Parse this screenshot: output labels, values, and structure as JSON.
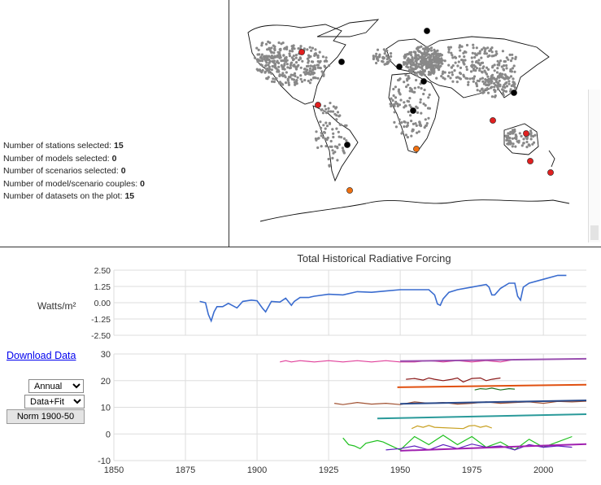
{
  "stats": {
    "stations_label": "Number of stations selected:",
    "stations_value": "15",
    "models_label": "Number of models selected:",
    "models_value": "0",
    "scenarios_label": "Number of scenarios selected:",
    "scenarios_value": "0",
    "couples_label": "Number of model/scenario couples:",
    "couples_value": "0",
    "datasets_label": "Number of datasets on the plot:",
    "datasets_value": "15"
  },
  "controls": {
    "download_label": "Download Data",
    "frequency_selected": "Annual",
    "mode_selected": "Data+Fit",
    "norm_label": "Norm 1900-50"
  },
  "colors": {
    "forcing_line": "#3a6ccf",
    "station_dot": "#888888",
    "selected_red": "#e02020",
    "selected_black": "#000000",
    "selected_orange": "#f07010"
  },
  "chart_data": [
    {
      "type": "line",
      "title": "Total Historical Radiative Forcing",
      "ylabel": "Watts/m²",
      "yticks": [
        "2.50",
        "1.25",
        "0.00",
        "-1.25",
        "-2.50"
      ],
      "ylim": [
        -2.5,
        2.5
      ],
      "xlim": [
        1850,
        2015
      ],
      "grid": true,
      "series": [
        {
          "x": [
            1880,
            1882,
            1883,
            1884,
            1885,
            1886,
            1888,
            1890,
            1893,
            1895,
            1898,
            1900,
            1902,
            1903,
            1905,
            1908,
            1910,
            1912,
            1913,
            1915,
            1918,
            1920,
            1925,
            1930,
            1935,
            1940,
            1945,
            1950,
            1955,
            1960,
            1962,
            1963,
            1964,
            1965,
            1967,
            1970,
            1975,
            1980,
            1981,
            1982,
            1983,
            1985,
            1988,
            1990,
            1991,
            1992,
            1993,
            1995,
            2000,
            2005,
            2008
          ],
          "values": [
            0.1,
            0.0,
            -0.9,
            -1.4,
            -0.7,
            -0.3,
            -0.3,
            -0.05,
            -0.4,
            0.1,
            0.2,
            0.15,
            -0.45,
            -0.7,
            0.1,
            0.05,
            0.35,
            -0.2,
            0.1,
            0.4,
            0.4,
            0.5,
            0.65,
            0.6,
            0.85,
            0.8,
            0.9,
            1.0,
            1.0,
            1.0,
            0.6,
            -0.1,
            -0.2,
            0.3,
            0.8,
            1.0,
            1.2,
            1.4,
            1.2,
            0.6,
            0.6,
            1.1,
            1.5,
            1.5,
            0.5,
            0.2,
            1.2,
            1.5,
            1.8,
            2.1,
            2.1
          ]
        }
      ]
    },
    {
      "type": "line",
      "yticks": [
        "30",
        "20",
        "10",
        "0",
        "-10"
      ],
      "xticks": [
        "1850",
        "1875",
        "1900",
        "1925",
        "1950",
        "1975",
        "2000"
      ],
      "ylim": [
        -10,
        30
      ],
      "xlim": [
        1850,
        2015
      ],
      "grid": true,
      "series": [
        {
          "color": "#e0409a",
          "x": [
            1908,
            1910,
            1912,
            1915,
            1920,
            1925,
            1930,
            1935,
            1940,
            1945,
            1950,
            1955,
            1960,
            1965,
            1970,
            1975,
            1980,
            1985,
            1990
          ],
          "values": [
            27,
            27.5,
            27,
            27.5,
            27,
            27.5,
            27,
            27.5,
            27,
            27.5,
            27,
            27,
            27.5,
            27,
            27.5,
            27,
            27.5,
            27,
            28
          ]
        },
        {
          "color": "#9a50b0",
          "fit": true,
          "x": [
            1950,
            2015
          ],
          "values": [
            27.3,
            28.2
          ]
        },
        {
          "color": "#e05010",
          "fit": true,
          "x": [
            1949,
            2015
          ],
          "values": [
            17.5,
            18.5
          ]
        },
        {
          "color": "#8b1a1a",
          "x": [
            1952,
            1955,
            1958,
            1960,
            1962,
            1965,
            1968,
            1970,
            1972,
            1975,
            1978,
            1980,
            1982,
            1985
          ],
          "values": [
            20.5,
            20.8,
            20.2,
            21,
            20.5,
            20,
            20.5,
            21,
            19.5,
            20.8,
            21,
            20,
            20.5,
            21
          ]
        },
        {
          "color": "#1a6e1a",
          "x": [
            1976,
            1978,
            1980,
            1982,
            1985,
            1988,
            1990
          ],
          "values": [
            16.5,
            17,
            16.8,
            17.2,
            16.5,
            17,
            16.8
          ]
        },
        {
          "color": "#a05030",
          "x": [
            1927,
            1930,
            1935,
            1940,
            1945,
            1950,
            1955,
            1960,
            1965,
            1970,
            1975,
            1980,
            1985,
            1990,
            1995,
            2000,
            2005,
            2010,
            2015
          ],
          "values": [
            11.5,
            11,
            11.8,
            11.2,
            11.5,
            11,
            12,
            11.5,
            11.8,
            11.2,
            11.5,
            12,
            11.5,
            11.8,
            12,
            11.5,
            12.2,
            12,
            12.3
          ]
        },
        {
          "color": "#2a4a8a",
          "fit": true,
          "x": [
            1950,
            2015
          ],
          "values": [
            11.3,
            12.6
          ]
        },
        {
          "color": "#2a9a9a",
          "fit": true,
          "x": [
            1942,
            2015
          ],
          "values": [
            5.8,
            7.4
          ]
        },
        {
          "color": "#c8a020",
          "x": [
            1954,
            1956,
            1958,
            1960,
            1962,
            1972,
            1974,
            1976,
            1978,
            1980,
            1982
          ],
          "values": [
            2,
            3,
            2.5,
            3.2,
            2.5,
            2,
            3,
            3.2,
            2.5,
            3,
            2.2
          ]
        },
        {
          "color": "#20c020",
          "x": [
            1930,
            1932,
            1934,
            1936,
            1938,
            1942,
            1944,
            1946,
            1950,
            1955,
            1960,
            1965,
            1970,
            1975,
            1980,
            1985,
            1990,
            1995,
            2000,
            2005,
            2010
          ],
          "values": [
            -1.5,
            -4,
            -4.5,
            -5.5,
            -3.5,
            -2.5,
            -3,
            -4,
            -6,
            -1,
            -4,
            -0.5,
            -4,
            -1,
            -5,
            -3,
            -6,
            -2,
            -5,
            -3,
            -1
          ]
        },
        {
          "color": "#6020c0",
          "x": [
            1945,
            1950,
            1955,
            1960,
            1965,
            1970,
            1975,
            1980,
            1985,
            1990,
            1995,
            2000,
            2005,
            2010
          ],
          "values": [
            -6,
            -5.5,
            -4.5,
            -6,
            -4,
            -5.5,
            -3.8,
            -5,
            -4.5,
            -6,
            -4,
            -5,
            -4.5,
            -5
          ]
        },
        {
          "color": "#a020b0",
          "fit": true,
          "x": [
            1950,
            2015
          ],
          "values": [
            -6.3,
            -3.8
          ]
        }
      ]
    }
  ]
}
